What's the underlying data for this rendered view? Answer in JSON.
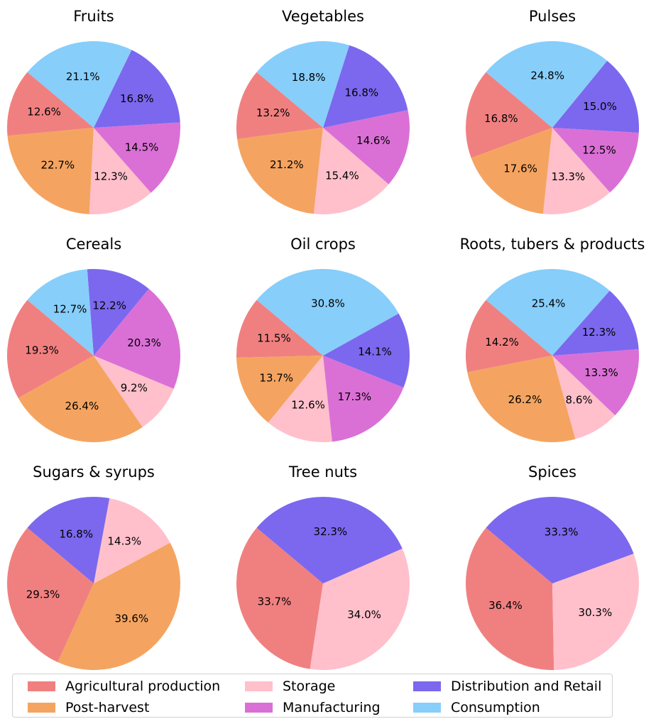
{
  "chart_data": {
    "type": "pie",
    "legend": {
      "placement": "bottom",
      "entries": [
        {
          "label": "Agricultural production",
          "color": "#F08080"
        },
        {
          "label": "Post-harvest",
          "color": "#F4A460"
        },
        {
          "label": "Storage",
          "color": "#FFC0CB"
        },
        {
          "label": "Manufacturing",
          "color": "#DA70D6"
        },
        {
          "label": "Distribution and Retail",
          "color": "#7B68EE"
        },
        {
          "label": "Consumption",
          "color": "#87CEFA"
        }
      ]
    },
    "charts": [
      {
        "title": "Fruits",
        "slices": [
          {
            "category": "Agricultural production",
            "value": 12.6,
            "label": "12.6%"
          },
          {
            "category": "Post-harvest",
            "value": 22.7,
            "label": "22.7%"
          },
          {
            "category": "Storage",
            "value": 12.3,
            "label": "12.3%"
          },
          {
            "category": "Manufacturing",
            "value": 14.5,
            "label": "14.5%"
          },
          {
            "category": "Distribution and Retail",
            "value": 16.8,
            "label": "16.8%"
          },
          {
            "category": "Consumption",
            "value": 21.1,
            "label": "21.1%"
          }
        ]
      },
      {
        "title": "Vegetables",
        "slices": [
          {
            "category": "Agricultural production",
            "value": 13.2,
            "label": "13.2%"
          },
          {
            "category": "Post-harvest",
            "value": 21.2,
            "label": "21.2%"
          },
          {
            "category": "Storage",
            "value": 15.4,
            "label": "15.4%"
          },
          {
            "category": "Manufacturing",
            "value": 14.6,
            "label": "14.6%"
          },
          {
            "category": "Distribution and Retail",
            "value": 16.8,
            "label": "16.8%"
          },
          {
            "category": "Consumption",
            "value": 18.8,
            "label": "18.8%"
          }
        ]
      },
      {
        "title": "Pulses",
        "slices": [
          {
            "category": "Agricultural production",
            "value": 16.8,
            "label": "16.8%"
          },
          {
            "category": "Post-harvest",
            "value": 17.6,
            "label": "17.6%"
          },
          {
            "category": "Storage",
            "value": 13.3,
            "label": "13.3%"
          },
          {
            "category": "Manufacturing",
            "value": 12.5,
            "label": "12.5%"
          },
          {
            "category": "Distribution and Retail",
            "value": 15.0,
            "label": "15.0%"
          },
          {
            "category": "Consumption",
            "value": 24.8,
            "label": "24.8%"
          }
        ]
      },
      {
        "title": "Cereals",
        "slices": [
          {
            "category": "Agricultural production",
            "value": 19.3,
            "label": "19.3%"
          },
          {
            "category": "Post-harvest",
            "value": 26.4,
            "label": "26.4%"
          },
          {
            "category": "Storage",
            "value": 9.2,
            "label": "9.2%"
          },
          {
            "category": "Manufacturing",
            "value": 20.3,
            "label": "20.3%"
          },
          {
            "category": "Distribution and Retail",
            "value": 12.2,
            "label": "12.2%"
          },
          {
            "category": "Consumption",
            "value": 12.7,
            "label": "12.7%"
          }
        ]
      },
      {
        "title": "Oil crops",
        "slices": [
          {
            "category": "Agricultural production",
            "value": 11.5,
            "label": "11.5%"
          },
          {
            "category": "Post-harvest",
            "value": 13.7,
            "label": "13.7%"
          },
          {
            "category": "Storage",
            "value": 12.6,
            "label": "12.6%"
          },
          {
            "category": "Manufacturing",
            "value": 17.3,
            "label": "17.3%"
          },
          {
            "category": "Distribution and Retail",
            "value": 14.1,
            "label": "14.1%"
          },
          {
            "category": "Consumption",
            "value": 30.8,
            "label": "30.8%"
          }
        ]
      },
      {
        "title": "Roots, tubers & products",
        "slices": [
          {
            "category": "Agricultural production",
            "value": 14.2,
            "label": "14.2%"
          },
          {
            "category": "Post-harvest",
            "value": 26.2,
            "label": "26.2%"
          },
          {
            "category": "Storage",
            "value": 8.6,
            "label": "8.6%"
          },
          {
            "category": "Manufacturing",
            "value": 13.3,
            "label": "13.3%"
          },
          {
            "category": "Distribution and Retail",
            "value": 12.3,
            "label": "12.3%"
          },
          {
            "category": "Consumption",
            "value": 25.4,
            "label": "25.4%"
          }
        ]
      },
      {
        "title": "Sugars & syrups",
        "slices": [
          {
            "category": "Agricultural production",
            "value": 29.3,
            "label": "29.3%"
          },
          {
            "category": "Post-harvest",
            "value": 39.6,
            "label": "39.6%"
          },
          {
            "category": "Storage",
            "value": 14.3,
            "label": "14.3%"
          },
          {
            "category": "Distribution and Retail",
            "value": 16.8,
            "label": "16.8%"
          }
        ]
      },
      {
        "title": "Tree nuts",
        "slices": [
          {
            "category": "Agricultural production",
            "value": 33.7,
            "label": "33.7%"
          },
          {
            "category": "Storage",
            "value": 34.0,
            "label": "34.0%"
          },
          {
            "category": "Distribution and Retail",
            "value": 32.3,
            "label": "32.3%"
          }
        ]
      },
      {
        "title": "Spices",
        "slices": [
          {
            "category": "Agricultural production",
            "value": 36.4,
            "label": "36.4%"
          },
          {
            "category": "Storage",
            "value": 30.3,
            "label": "30.3%"
          },
          {
            "category": "Distribution and Retail",
            "value": 33.3,
            "label": "33.3%"
          }
        ]
      }
    ]
  }
}
